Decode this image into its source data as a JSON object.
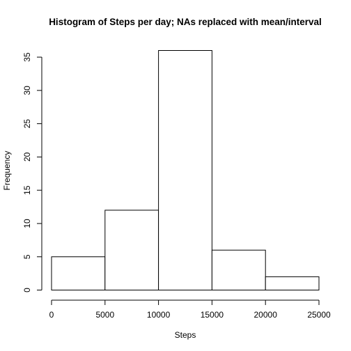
{
  "chart_data": {
    "type": "bar",
    "title": "Histogram of Steps per day; NAs replaced with mean/interval",
    "xlabel": "Steps",
    "ylabel": "Frequency",
    "bins": [
      {
        "from": 0,
        "to": 5000,
        "count": 5
      },
      {
        "from": 5000,
        "to": 10000,
        "count": 12
      },
      {
        "from": 10000,
        "to": 15000,
        "count": 36
      },
      {
        "from": 15000,
        "to": 20000,
        "count": 6
      },
      {
        "from": 20000,
        "to": 25000,
        "count": 2
      }
    ],
    "x_ticks": [
      "0",
      "5000",
      "10000",
      "15000",
      "20000",
      "25000"
    ],
    "y_ticks": [
      "0",
      "5",
      "10",
      "15",
      "20",
      "25",
      "30",
      "35"
    ],
    "xlim": [
      0,
      25000
    ],
    "ylim": [
      0,
      36
    ],
    "grid": false,
    "legend": "none"
  }
}
